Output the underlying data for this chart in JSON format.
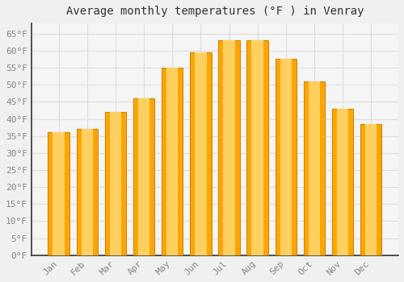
{
  "title": "Average monthly temperatures (°F ) in Venray",
  "months": [
    "Jan",
    "Feb",
    "Mar",
    "Apr",
    "May",
    "Jun",
    "Jul",
    "Aug",
    "Sep",
    "Oct",
    "Nov",
    "Dec"
  ],
  "values": [
    36,
    37,
    42,
    46,
    55,
    59.5,
    63,
    63,
    57.5,
    51,
    43,
    38.5
  ],
  "bar_color_main": "#FFA500",
  "bar_color_light": "#FFD060",
  "bar_edge_color": "#CC8800",
  "background_color": "#F0F0F0",
  "plot_bg_color": "#F5F5F5",
  "grid_color": "#DDDDDD",
  "tick_label_color": "#888888",
  "title_color": "#333333",
  "axis_color": "#333333",
  "ylim": [
    0,
    68
  ],
  "yticks": [
    0,
    5,
    10,
    15,
    20,
    25,
    30,
    35,
    40,
    45,
    50,
    55,
    60,
    65
  ],
  "ytick_labels": [
    "0°F",
    "5°F",
    "10°F",
    "15°F",
    "20°F",
    "25°F",
    "30°F",
    "35°F",
    "40°F",
    "45°F",
    "50°F",
    "55°F",
    "60°F",
    "65°F"
  ],
  "title_fontsize": 10,
  "tick_fontsize": 8,
  "bar_width": 0.75
}
